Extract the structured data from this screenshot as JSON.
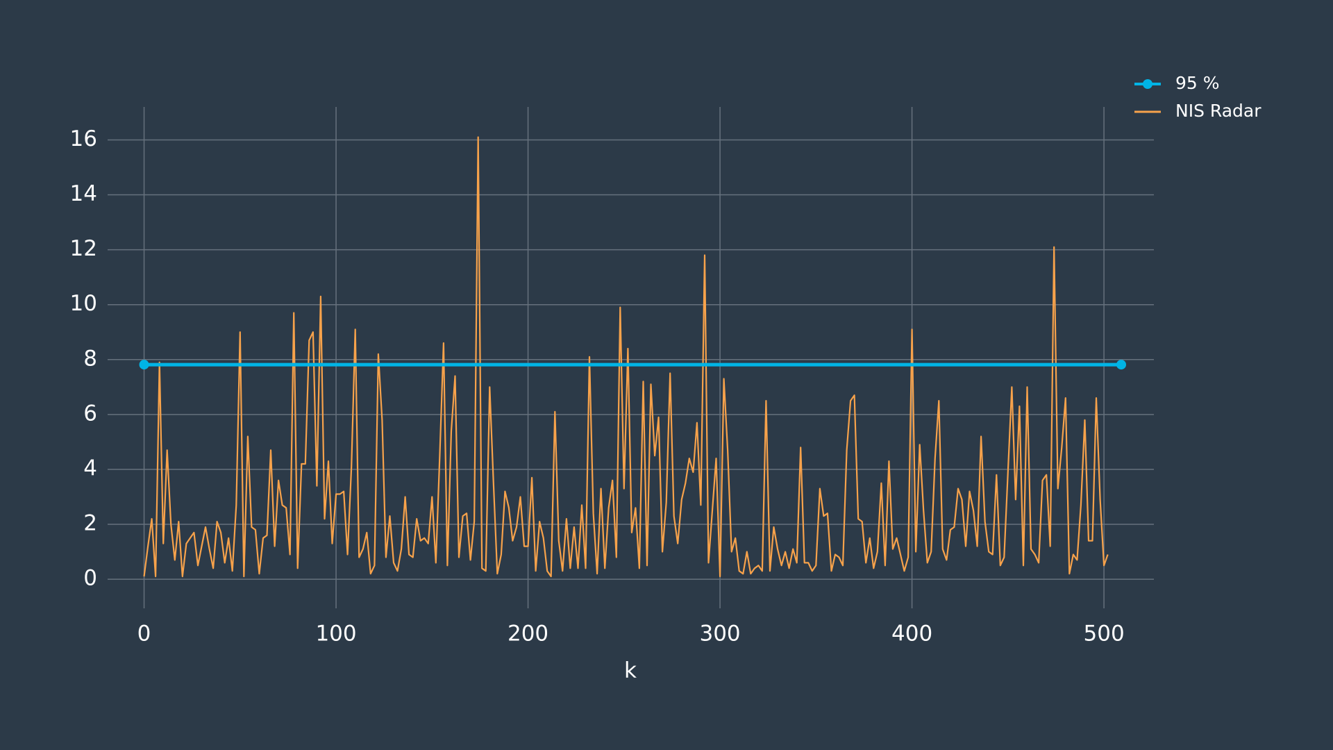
{
  "chart_data": {
    "type": "line",
    "xlabel": "k",
    "xlim": [
      -19,
      526
    ],
    "ylim": [
      -1.06,
      17.2
    ],
    "xticks": [
      0,
      100,
      200,
      300,
      400,
      500
    ],
    "yticks": [
      0,
      2,
      4,
      6,
      8,
      10,
      12,
      14,
      16
    ],
    "grid": true,
    "legend": "upper right",
    "series": [
      {
        "name": "95 %",
        "color": "#00b4e6",
        "markers": true,
        "x": [
          0,
          509
        ],
        "values": [
          7.815,
          7.815
        ]
      },
      {
        "name": "NIS Radar",
        "color": "#f7a24b",
        "markers": false,
        "x": [
          0,
          2,
          4,
          6,
          8,
          10,
          12,
          14,
          16,
          18,
          20,
          22,
          24,
          26,
          28,
          30,
          32,
          34,
          36,
          38,
          40,
          42,
          44,
          46,
          48,
          50,
          52,
          54,
          56,
          58,
          60,
          62,
          64,
          66,
          68,
          70,
          72,
          74,
          76,
          78,
          80,
          82,
          84,
          86,
          88,
          90,
          92,
          94,
          96,
          98,
          100,
          102,
          104,
          106,
          108,
          110,
          112,
          114,
          116,
          118,
          120,
          122,
          124,
          126,
          128,
          130,
          132,
          134,
          136,
          138,
          140,
          142,
          144,
          146,
          148,
          150,
          152,
          154,
          156,
          158,
          160,
          162,
          164,
          166,
          168,
          170,
          172,
          174,
          176,
          178,
          180,
          182,
          184,
          186,
          188,
          190,
          192,
          194,
          196,
          198,
          200,
          202,
          204,
          206,
          208,
          210,
          212,
          214,
          216,
          218,
          220,
          222,
          224,
          226,
          228,
          230,
          232,
          234,
          236,
          238,
          240,
          242,
          244,
          246,
          248,
          250,
          252,
          254,
          256,
          258,
          260,
          262,
          264,
          266,
          268,
          270,
          272,
          274,
          276,
          278,
          280,
          282,
          284,
          286,
          288,
          290,
          292,
          294,
          296,
          298,
          300,
          302,
          304,
          306,
          308,
          310,
          312,
          314,
          316,
          318,
          320,
          322,
          324,
          326,
          328,
          330,
          332,
          334,
          336,
          338,
          340,
          342,
          344,
          346,
          348,
          350,
          352,
          354,
          356,
          358,
          360,
          362,
          364,
          366,
          368,
          370,
          372,
          374,
          376,
          378,
          380,
          382,
          384,
          386,
          388,
          390,
          392,
          394,
          396,
          398,
          400,
          402,
          404,
          406,
          408,
          410,
          412,
          414,
          416,
          418,
          420,
          422,
          424,
          426,
          428,
          430,
          432,
          434,
          436,
          438,
          440,
          442,
          444,
          446,
          448,
          450,
          452,
          454,
          456,
          458,
          460,
          462,
          464,
          466,
          468,
          470,
          472,
          474,
          476,
          478,
          480,
          482,
          484,
          486,
          488,
          490,
          492,
          494,
          496,
          498,
          500,
          502
        ],
        "values": [
          0.1,
          1.2,
          2.2,
          0.1,
          7.9,
          1.3,
          4.7,
          2.0,
          0.7,
          2.1,
          0.1,
          1.3,
          1.5,
          1.7,
          0.5,
          1.2,
          1.9,
          1.1,
          0.4,
          2.1,
          1.7,
          0.6,
          1.5,
          0.3,
          2.7,
          9.0,
          0.1,
          5.2,
          1.9,
          1.8,
          0.2,
          1.5,
          1.6,
          4.7,
          1.2,
          3.6,
          2.7,
          2.6,
          0.9,
          9.7,
          0.4,
          4.2,
          4.2,
          8.7,
          9.0,
          3.4,
          10.3,
          2.2,
          4.3,
          1.3,
          3.1,
          3.1,
          3.2,
          0.9,
          4.1,
          9.1,
          0.8,
          1.1,
          1.7,
          0.2,
          0.5,
          8.2,
          5.8,
          0.8,
          2.3,
          0.6,
          0.3,
          1.1,
          3.0,
          0.9,
          0.8,
          2.2,
          1.4,
          1.5,
          1.3,
          3.0,
          0.6,
          4.5,
          8.6,
          0.5,
          5.4,
          7.4,
          0.8,
          2.3,
          2.4,
          0.7,
          2.1,
          16.1,
          0.4,
          0.3,
          7.0,
          3.5,
          0.2,
          0.9,
          3.2,
          2.6,
          1.4,
          1.9,
          3.0,
          1.2,
          1.2,
          3.7,
          0.3,
          2.1,
          1.5,
          0.3,
          0.1,
          6.1,
          1.4,
          0.3,
          2.2,
          0.4,
          1.9,
          0.4,
          2.7,
          0.4,
          8.1,
          2.4,
          0.2,
          3.3,
          0.4,
          2.6,
          3.6,
          0.8,
          9.9,
          3.3,
          8.4,
          1.7,
          2.6,
          0.4,
          7.2,
          0.5,
          7.1,
          4.5,
          5.9,
          1.0,
          2.8,
          7.5,
          2.3,
          1.3,
          2.9,
          3.5,
          4.4,
          3.9,
          5.7,
          2.7,
          11.8,
          0.6,
          2.5,
          4.4,
          0.1,
          7.3,
          4.7,
          1.0,
          1.5,
          0.3,
          0.2,
          1.0,
          0.2,
          0.4,
          0.5,
          0.3,
          6.5,
          0.3,
          1.9,
          1.1,
          0.5,
          1.0,
          0.4,
          1.1,
          0.6,
          4.8,
          0.6,
          0.6,
          0.3,
          0.5,
          3.3,
          2.3,
          2.4,
          0.3,
          0.9,
          0.8,
          0.5,
          4.7,
          6.5,
          6.7,
          2.2,
          2.1,
          0.6,
          1.5,
          0.4,
          1.0,
          3.5,
          0.5,
          4.3,
          1.1,
          1.5,
          0.9,
          0.3,
          0.8,
          9.1,
          1.0,
          4.9,
          2.5,
          0.6,
          1.0,
          4.4,
          6.5,
          1.1,
          0.7,
          1.8,
          1.9,
          3.3,
          2.9,
          1.2,
          3.2,
          2.5,
          1.2,
          5.2,
          2.1,
          1.0,
          0.9,
          3.8,
          0.5,
          0.8,
          3.9,
          7.0,
          2.9,
          6.3,
          0.5,
          7.0,
          1.1,
          0.9,
          0.6,
          3.6,
          3.8,
          1.2,
          12.1,
          3.3,
          4.8,
          6.6,
          0.2,
          0.9,
          0.7,
          2.7,
          5.8,
          1.4,
          1.4,
          6.6,
          2.9,
          0.5,
          0.9
        ]
      }
    ]
  }
}
